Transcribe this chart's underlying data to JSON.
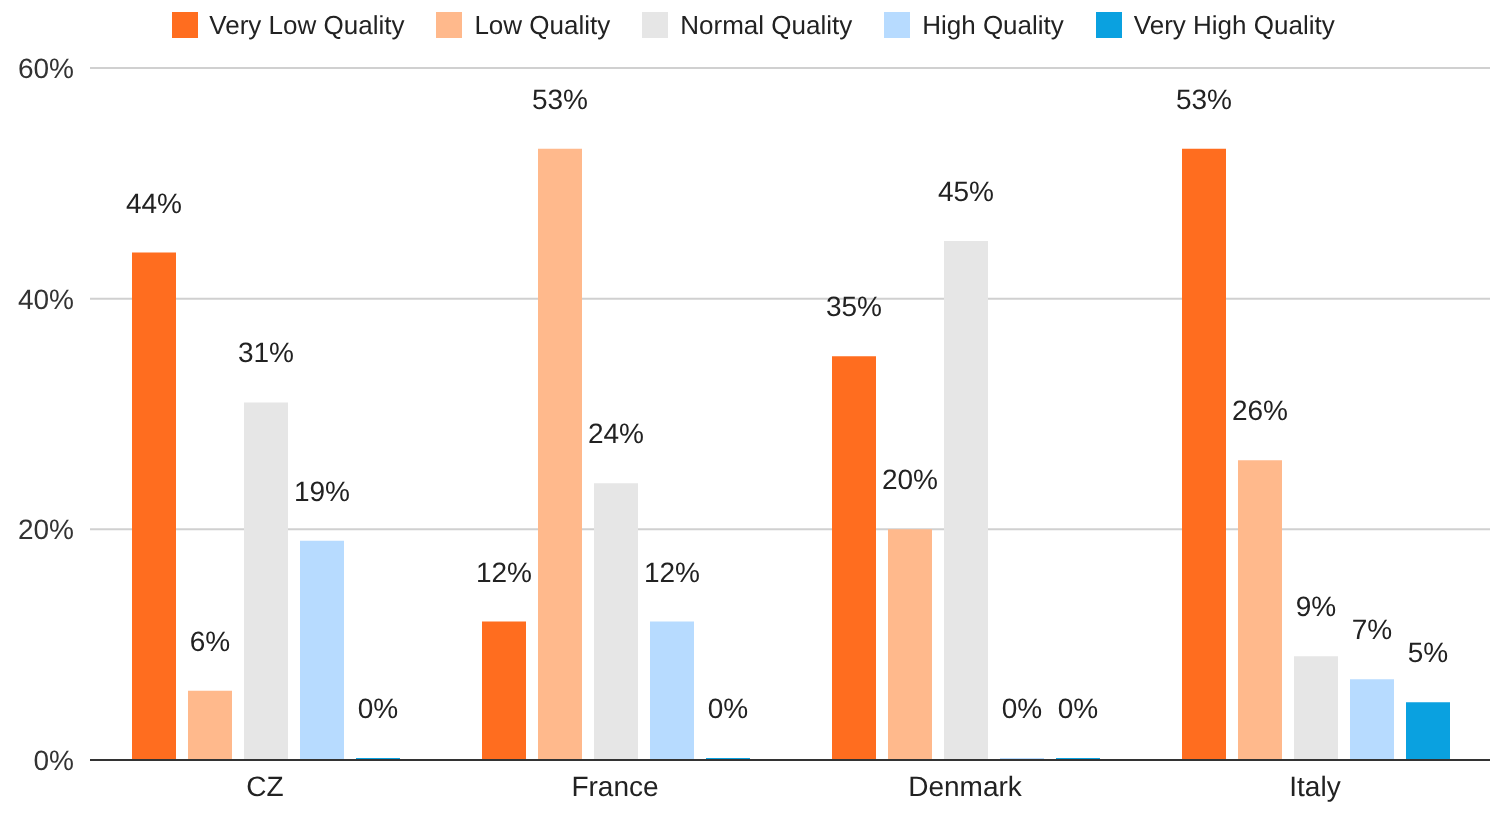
{
  "chart_data": {
    "type": "bar",
    "categories": [
      "CZ",
      "France",
      "Denmark",
      "Italy"
    ],
    "series": [
      {
        "name": "Very Low Quality",
        "color": "#ff6d1f",
        "values": [
          44,
          12,
          35,
          53
        ],
        "value_labels": [
          "44%",
          "12%",
          "35%",
          "53%"
        ]
      },
      {
        "name": "Low Quality",
        "color": "#ffb98c",
        "values": [
          6,
          53,
          20,
          26
        ],
        "value_labels": [
          "6%",
          "53%",
          "20%",
          "26%"
        ]
      },
      {
        "name": "Normal Quality",
        "color": "#e6e6e6",
        "values": [
          31,
          24,
          45,
          9
        ],
        "value_labels": [
          "31%",
          "24%",
          "45%",
          "9%"
        ]
      },
      {
        "name": "High Quality",
        "color": "#b7dbff",
        "values": [
          19,
          12,
          0,
          7
        ],
        "value_labels": [
          "19%",
          "12%",
          "0%",
          "7%"
        ]
      },
      {
        "name": "Very High Quality",
        "color": "#0aa1e0",
        "values": [
          0,
          0,
          0,
          5
        ],
        "value_labels": [
          "0%",
          "0%",
          "0%",
          "5%"
        ]
      }
    ],
    "ylim": [
      0,
      60
    ],
    "yticks": [
      {
        "value": 0,
        "label": "0%"
      },
      {
        "value": 20,
        "label": "20%"
      },
      {
        "value": 40,
        "label": "40%"
      },
      {
        "value": 60,
        "label": "60%"
      }
    ],
    "grid": "y",
    "legend": "top"
  }
}
